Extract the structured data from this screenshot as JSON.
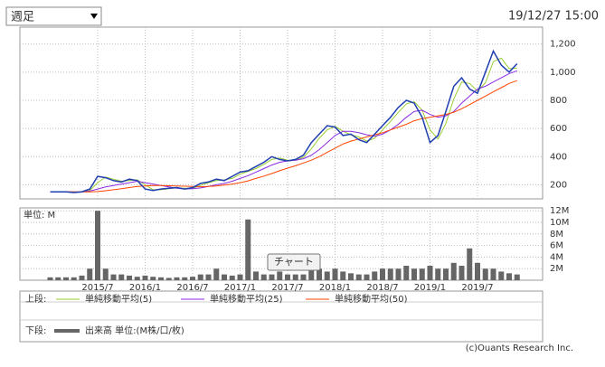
{
  "header": {
    "period_select": "週足",
    "timestamp": "19/12/27 15:00"
  },
  "tooltip": "チャート",
  "copyright": "(c)Ouants Research Inc.",
  "chart_data": [
    {
      "type": "line",
      "legend_label": "上段:",
      "categories": [
        null,
        null,
        null,
        null,
        null,
        null,
        "2015/7",
        null,
        null,
        null,
        null,
        null,
        "2016/1",
        null,
        null,
        null,
        null,
        null,
        "2016/7",
        null,
        null,
        null,
        null,
        null,
        "2017/1",
        null,
        null,
        null,
        null,
        null,
        "2017/7",
        null,
        null,
        null,
        null,
        null,
        "2018/1",
        null,
        null,
        null,
        null,
        null,
        "2018/7",
        null,
        null,
        null,
        null,
        null,
        "2019/1",
        null,
        null,
        null,
        null,
        null,
        "2019/7",
        null,
        null,
        null,
        null,
        null
      ],
      "values": [
        150,
        150,
        150,
        145,
        150,
        170,
        260,
        250,
        230,
        220,
        240,
        230,
        170,
        160,
        170,
        175,
        180,
        170,
        180,
        210,
        220,
        240,
        230,
        260,
        290,
        300,
        330,
        360,
        400,
        380,
        370,
        380,
        410,
        500,
        560,
        620,
        610,
        550,
        560,
        520,
        500,
        560,
        620,
        680,
        750,
        800,
        780,
        680,
        500,
        550,
        720,
        900,
        960,
        880,
        850,
        1000,
        1150,
        1050,
        1000,
        1060
      ],
      "color": "#1f3fb0",
      "series": [
        {
          "name": "単純移動平均(5)",
          "color": "#9acd32",
          "values": [
            150,
            150,
            150,
            148,
            148,
            160,
            215,
            255,
            240,
            225,
            230,
            235,
            200,
            165,
            165,
            172,
            178,
            175,
            175,
            195,
            215,
            230,
            235,
            245,
            275,
            295,
            315,
            345,
            380,
            390,
            375,
            375,
            395,
            455,
            530,
            590,
            615,
            580,
            555,
            540,
            510,
            530,
            590,
            650,
            715,
            775,
            790,
            730,
            590,
            525,
            635,
            810,
            930,
            920,
            865,
            925,
            1075,
            1100,
            1025,
            1030
          ]
        },
        {
          "name": "単純移動平均(25)",
          "color": "#8a2be2",
          "values": [
            150,
            150,
            150,
            150,
            150,
            155,
            170,
            185,
            195,
            205,
            215,
            225,
            215,
            205,
            195,
            185,
            175,
            170,
            172,
            178,
            188,
            200,
            210,
            225,
            245,
            265,
            290,
            315,
            340,
            360,
            370,
            375,
            385,
            410,
            450,
            500,
            550,
            580,
            580,
            570,
            555,
            545,
            560,
            590,
            630,
            680,
            720,
            730,
            700,
            680,
            690,
            720,
            780,
            830,
            880,
            900,
            930,
            960,
            990,
            1010
          ]
        },
        {
          "name": "単純移動平均(50)",
          "color": "#ff4500",
          "values": [
            150,
            150,
            150,
            150,
            150,
            150,
            152,
            158,
            165,
            172,
            180,
            188,
            192,
            195,
            195,
            193,
            192,
            190,
            188,
            186,
            188,
            192,
            198,
            205,
            215,
            228,
            245,
            262,
            280,
            300,
            318,
            335,
            355,
            375,
            400,
            430,
            460,
            490,
            510,
            525,
            540,
            555,
            570,
            590,
            610,
            630,
            655,
            670,
            680,
            690,
            700,
            715,
            740,
            770,
            800,
            830,
            860,
            890,
            920,
            940
          ]
        }
      ],
      "ylim": [
        100,
        1320
      ],
      "yticks": [
        200,
        400,
        600,
        800,
        {
          "value": 1000,
          "label": "1,000"
        },
        {
          "value": 1200,
          "label": "1,200"
        }
      ],
      "grid": true
    },
    {
      "type": "bar",
      "legend_label": "下段:",
      "series_name": "出来高 単位:(M株/口/枚)",
      "unit": "単位: M",
      "values": [
        0.5,
        0.5,
        0.5,
        0.5,
        0.8,
        2,
        12,
        2,
        1,
        1,
        0.8,
        0.6,
        0.8,
        0.6,
        0.5,
        0.4,
        0.5,
        0.5,
        0.6,
        1,
        1,
        2,
        1,
        0.8,
        1,
        10.5,
        1.5,
        1,
        1,
        1.5,
        1,
        1,
        1,
        2,
        2,
        1.5,
        2,
        1.5,
        1.2,
        1,
        1,
        1.5,
        2,
        2,
        2,
        2.5,
        2,
        2,
        2.5,
        2,
        2,
        3,
        2.5,
        5.5,
        3,
        2,
        2,
        1.5,
        1.2,
        1
      ],
      "color": "#666666",
      "ylim": [
        0,
        12.5
      ],
      "yticks": [
        {
          "value": 2,
          "label": "2M"
        },
        {
          "value": 4,
          "label": "4M"
        },
        {
          "value": 6,
          "label": "6M"
        },
        {
          "value": 8,
          "label": "8M"
        },
        {
          "value": 10,
          "label": "10M"
        },
        {
          "value": 12,
          "label": "12M"
        }
      ],
      "grid": true
    }
  ]
}
